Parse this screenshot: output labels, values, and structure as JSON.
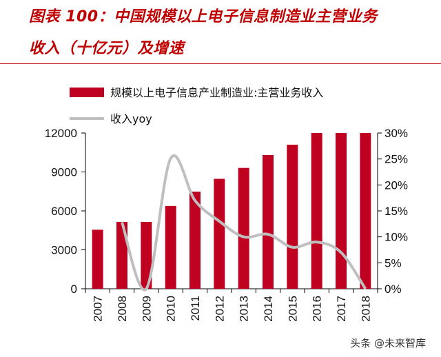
{
  "header": {
    "title_line1": "图表 100：中国规模以上电子信息制造业主营业务",
    "title_line2": "收入（十亿元）及增速"
  },
  "watermark": "头条 @未来智库",
  "colors": {
    "bar": "#c00021",
    "line": "#bfbfbf",
    "title": "#c00000"
  },
  "chart_data": {
    "type": "bar",
    "categories": [
      "2007",
      "2008",
      "2009",
      "2010",
      "2011",
      "2012",
      "2013",
      "2014",
      "2015",
      "2016",
      "2017",
      "2018"
    ],
    "series": [
      {
        "name": "规模以上电子信息产业制造业:主营业务收入",
        "type": "bar",
        "axis": "left",
        "values": [
          4550,
          5150,
          5150,
          6380,
          7480,
          8470,
          9310,
          10300,
          11100,
          12000,
          12000,
          12000
        ]
      },
      {
        "name": "收入yoy",
        "type": "line",
        "axis": "right",
        "values": [
          null,
          12.8,
          0,
          25.1,
          17.0,
          13.0,
          10.0,
          10.5,
          8.0,
          9.0,
          7.0,
          0
        ]
      }
    ],
    "left_axis": {
      "ylim": [
        0,
        12000
      ],
      "ticks": [
        "0",
        "3000",
        "6000",
        "9000",
        "12000"
      ]
    },
    "right_axis": {
      "ylim": [
        0,
        30
      ],
      "ticks": [
        "0%",
        "5%",
        "10%",
        "15%",
        "20%",
        "25%",
        "30%"
      ]
    },
    "legend": "top-left"
  }
}
